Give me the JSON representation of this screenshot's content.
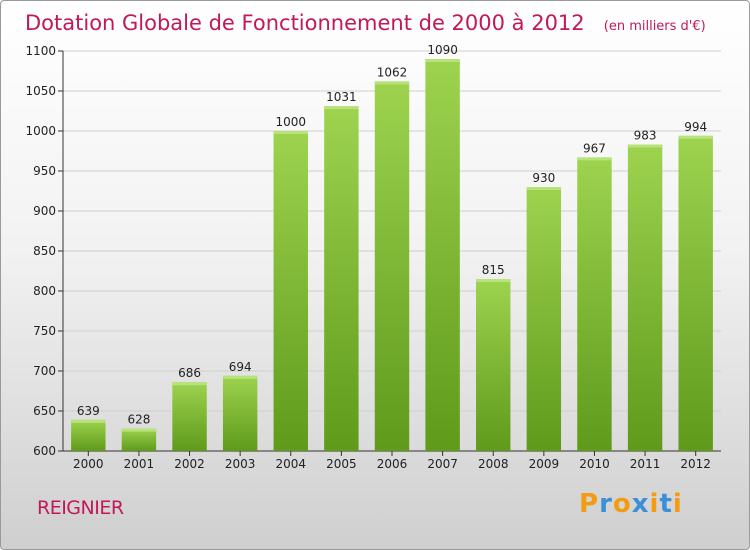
{
  "chart_data": {
    "type": "bar",
    "title": "Dotation Globale de Fonctionnement de 2000 à 2012",
    "subtitle": "(en milliers d'€)",
    "categories": [
      "2000",
      "2001",
      "2002",
      "2003",
      "2004",
      "2005",
      "2006",
      "2007",
      "2008",
      "2009",
      "2010",
      "2011",
      "2012"
    ],
    "values": [
      639,
      628,
      686,
      694,
      1000,
      1031,
      1062,
      1090,
      815,
      930,
      967,
      983,
      994
    ],
    "ylim": [
      600,
      1100
    ],
    "yticks": [
      600,
      650,
      700,
      750,
      800,
      850,
      900,
      950,
      1000,
      1050,
      1100
    ],
    "grid": true,
    "bar_color": "#7dba2f",
    "bar_color_light": "#9dd34f",
    "bar_color_dark": "#5f9a1b"
  },
  "footer": {
    "location": "REIGNIER",
    "brand": [
      "P",
      "r",
      "o",
      "x",
      "i",
      "t",
      "i"
    ],
    "brand_colors": [
      "#f39c12",
      "#3a8fd6",
      "#f39c12",
      "#3a8fd6",
      "#f39c12",
      "#3a8fd6",
      "#f39c12"
    ]
  },
  "colors": {
    "title": "#c2185b",
    "grid": "#cfcfcf",
    "axis": "#333333"
  }
}
